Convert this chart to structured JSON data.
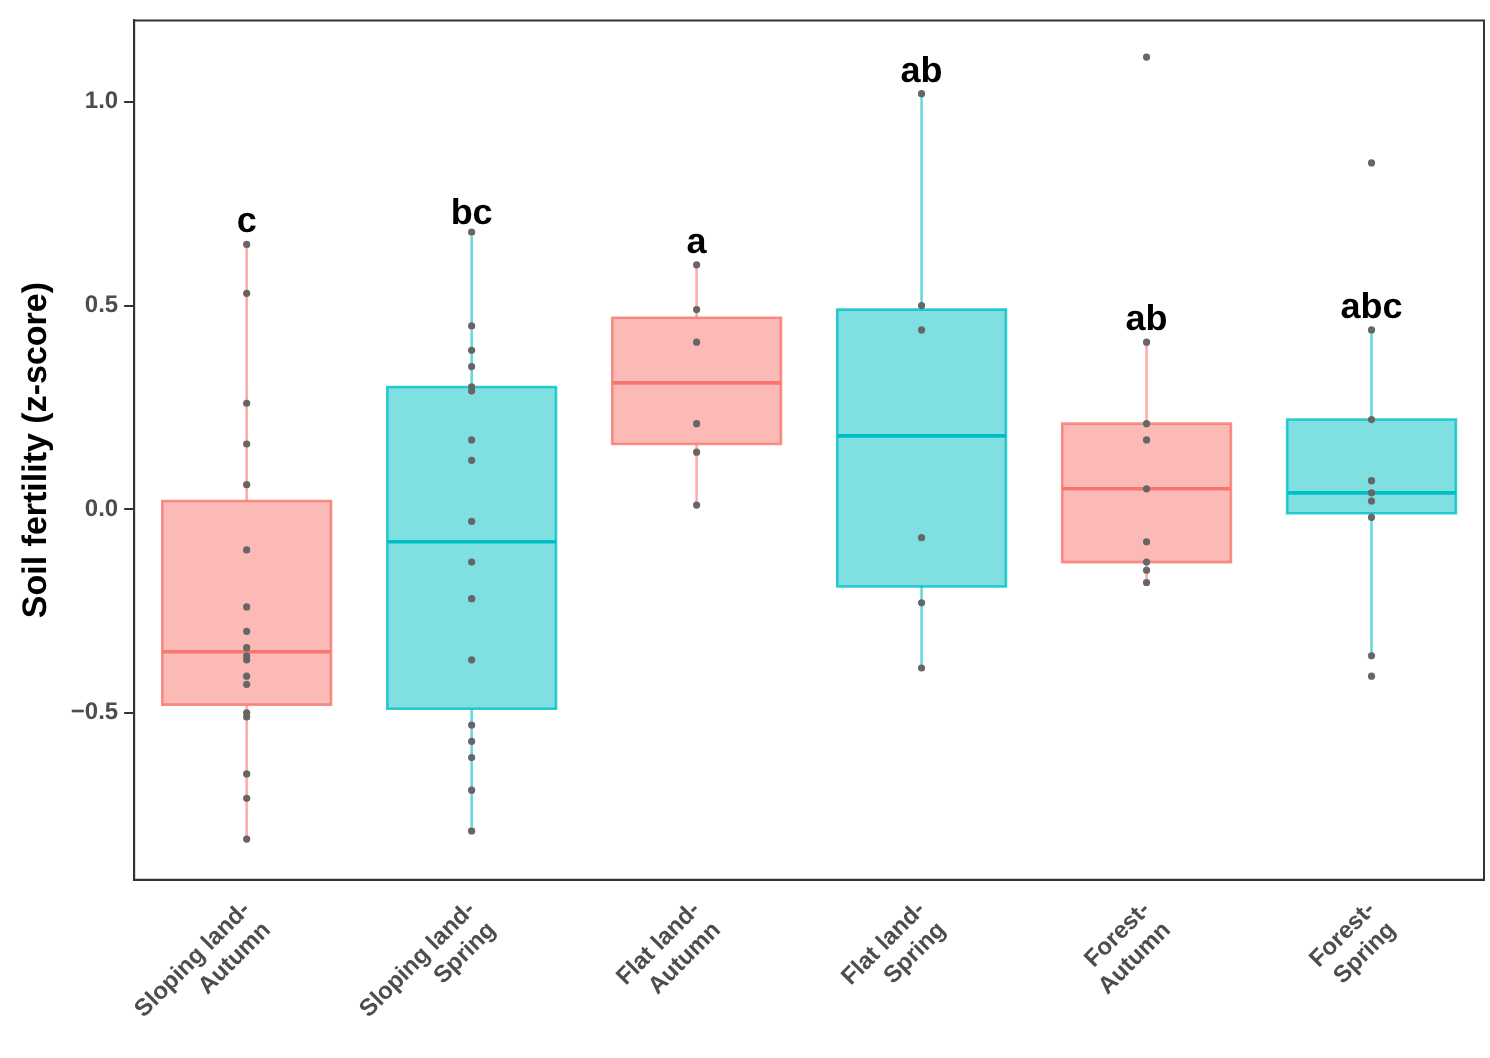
{
  "chart_data": {
    "type": "box",
    "ylabel": "Soil fertility (z-score)",
    "categories": [
      "Sloping land-Autumn",
      "Sloping land-Spring",
      "Flat land-Autumn",
      "Flat land-Spring",
      "Forest-Autumn",
      "Forest-Spring"
    ],
    "boxes": [
      {
        "low": -0.81,
        "q1": -0.48,
        "median": -0.35,
        "q3": 0.02,
        "high": 0.65
      },
      {
        "low": -0.78,
        "q1": -0.49,
        "median": -0.08,
        "q3": 0.3,
        "high": 0.67
      },
      {
        "low": 0.01,
        "q1": 0.16,
        "median": 0.31,
        "q3": 0.47,
        "high": 0.6
      },
      {
        "low": -0.39,
        "q1": -0.19,
        "median": 0.18,
        "q3": 0.49,
        "high": 1.02
      },
      {
        "low": -0.18,
        "q1": -0.13,
        "median": 0.05,
        "q3": 0.21,
        "high": 0.41
      },
      {
        "low": -0.36,
        "q1": -0.01,
        "median": 0.04,
        "q3": 0.22,
        "high": 0.44
      }
    ],
    "colors": [
      "#f8766d",
      "#00bfc4",
      "#f8766d",
      "#00bfc4",
      "#f8766d",
      "#00bfc4"
    ],
    "series": [
      {
        "type": "scatter",
        "color": "#666666",
        "x": [
          "Sloping land-Autumn",
          "Sloping land-Autumn",
          "Sloping land-Autumn",
          "Sloping land-Autumn",
          "Sloping land-Autumn",
          "Sloping land-Autumn",
          "Sloping land-Autumn",
          "Sloping land-Autumn",
          "Sloping land-Autumn",
          "Sloping land-Autumn",
          "Sloping land-Autumn",
          "Sloping land-Autumn",
          "Sloping land-Autumn",
          "Sloping land-Autumn",
          "Sloping land-Autumn",
          "Sloping land-Autumn",
          "Sloping land-Autumn",
          "Sloping land-Autumn",
          "Sloping land-Spring",
          "Sloping land-Spring",
          "Sloping land-Spring",
          "Sloping land-Spring",
          "Sloping land-Spring",
          "Sloping land-Spring",
          "Sloping land-Spring",
          "Sloping land-Spring",
          "Sloping land-Spring",
          "Sloping land-Spring",
          "Sloping land-Spring",
          "Sloping land-Spring",
          "Sloping land-Spring",
          "Sloping land-Spring",
          "Sloping land-Spring",
          "Sloping land-Spring",
          "Sloping land-Spring",
          "Sloping land-Spring",
          "Flat land-Autumn",
          "Flat land-Autumn",
          "Flat land-Autumn",
          "Flat land-Autumn",
          "Flat land-Autumn",
          "Flat land-Autumn",
          "Flat land-Spring",
          "Flat land-Spring",
          "Flat land-Spring",
          "Flat land-Spring",
          "Flat land-Spring",
          "Flat land-Spring",
          "Forest-Autumn",
          "Forest-Autumn",
          "Forest-Autumn",
          "Forest-Autumn",
          "Forest-Autumn",
          "Forest-Autumn",
          "Forest-Autumn",
          "Forest-Autumn",
          "Forest-Autumn",
          "Forest-Spring",
          "Forest-Spring",
          "Forest-Spring",
          "Forest-Spring",
          "Forest-Spring",
          "Forest-Spring",
          "Forest-Spring",
          "Forest-Spring",
          "Forest-Spring"
        ],
        "values": [
          0.65,
          0.53,
          0.26,
          0.16,
          0.06,
          -0.1,
          -0.24,
          -0.3,
          -0.34,
          -0.36,
          -0.37,
          -0.41,
          -0.43,
          -0.5,
          -0.51,
          -0.65,
          -0.71,
          -0.81,
          0.68,
          0.45,
          0.39,
          0.35,
          0.3,
          0.29,
          0.17,
          0.12,
          -0.03,
          -0.13,
          -0.22,
          -0.22,
          -0.37,
          -0.53,
          -0.57,
          -0.61,
          -0.69,
          -0.79,
          0.6,
          0.49,
          0.41,
          0.21,
          0.14,
          0.01,
          1.02,
          0.5,
          0.44,
          -0.07,
          -0.23,
          -0.39,
          1.11,
          0.41,
          0.21,
          0.17,
          0.05,
          -0.08,
          -0.13,
          -0.15,
          -0.18,
          0.85,
          0.44,
          0.22,
          0.07,
          0.04,
          0.02,
          -0.02,
          -0.36,
          -0.41
        ]
      }
    ],
    "ylim": [
      -0.91,
      1.2
    ],
    "yticks": [
      {
        "value": -0.5,
        "label": "−0.5"
      },
      {
        "value": 0,
        "label": "0.0"
      },
      {
        "value": 0.5,
        "label": "0.5"
      },
      {
        "value": 1,
        "label": "1.0"
      }
    ],
    "annotations": [
      "c",
      "bc",
      "a",
      "ab",
      "ab",
      "abc"
    ],
    "grid": false
  }
}
